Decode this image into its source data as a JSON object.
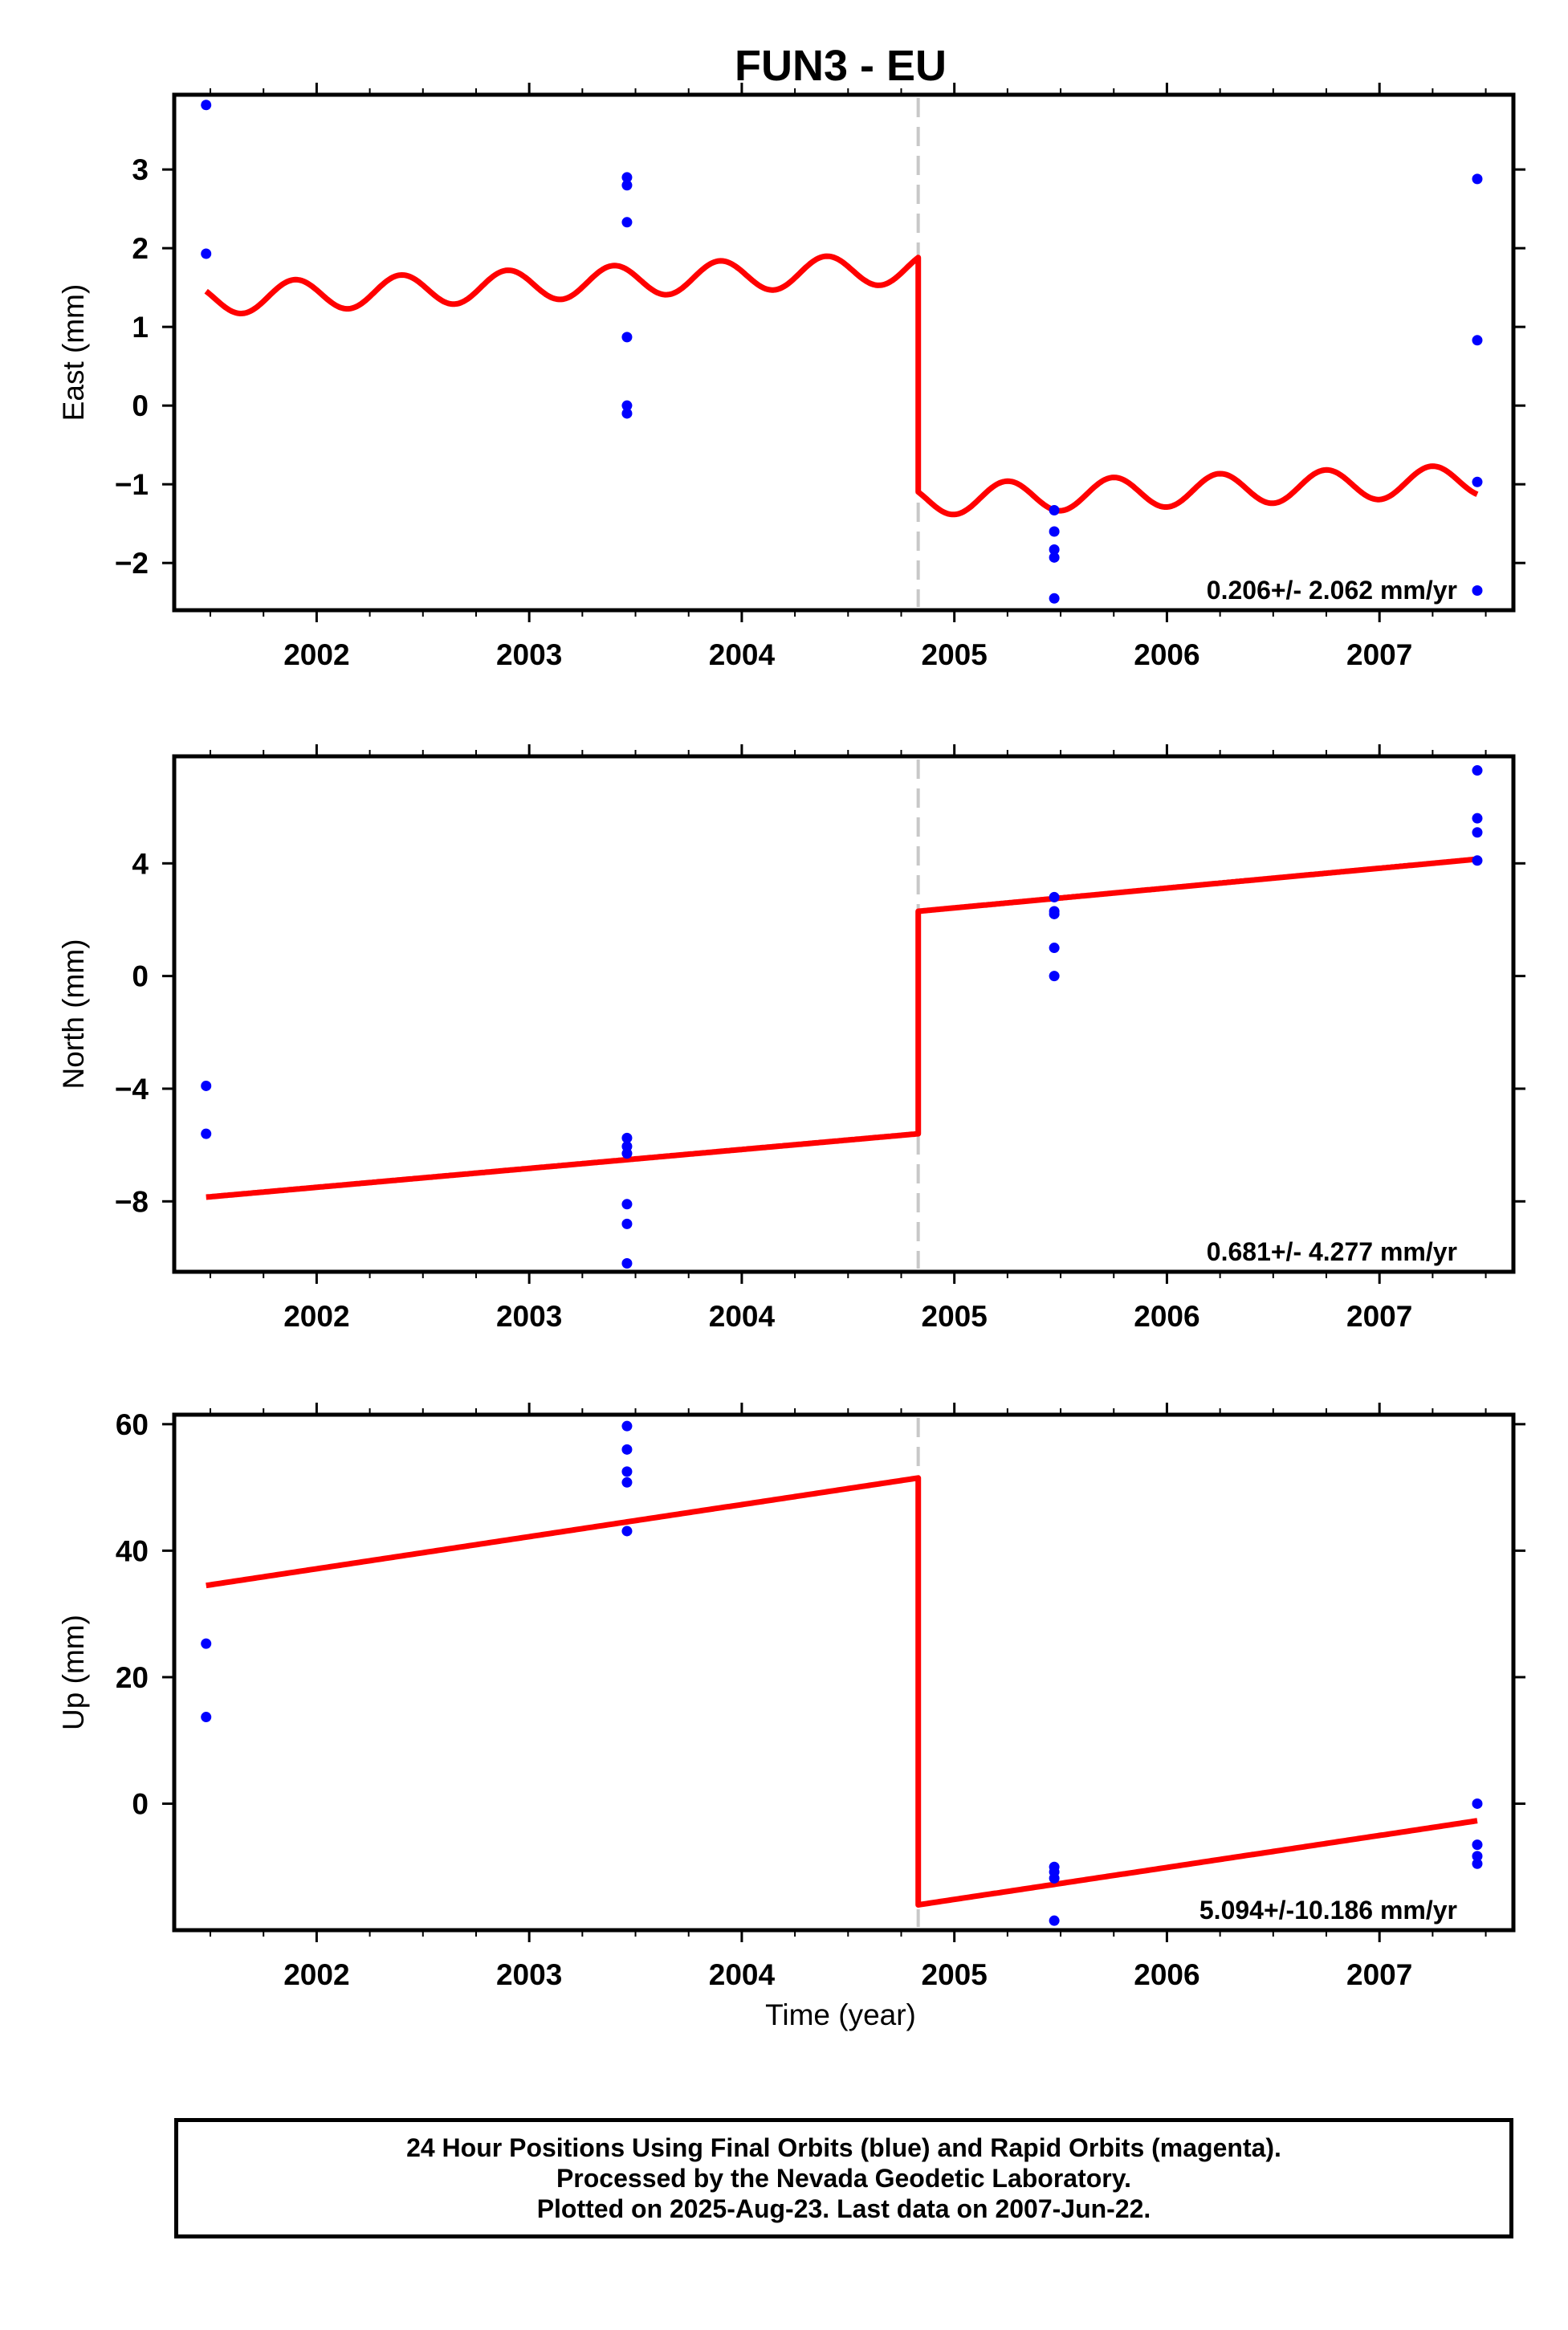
{
  "title": "FUN3 - EU",
  "xlabel": "Time (year)",
  "footer": {
    "line1": "24 Hour Positions Using Final Orbits (blue) and Rapid Orbits (magenta).",
    "line2": "Processed by the Nevada Geodetic Laboratory.",
    "line3": "Plotted on 2025-Aug-23. Last data on 2007-Jun-22."
  },
  "colors": {
    "data": "#0000ff",
    "model": "#ff0000",
    "offset_line": "#c8c8c8",
    "frame": "#000000"
  },
  "chart_data": [
    {
      "type": "scatter",
      "ylabel": "East (mm)",
      "rate_label": "0.206+/- 2.062 mm/yr",
      "xlim": [
        2001.33,
        2007.63
      ],
      "ylim": [
        -2.6,
        3.95
      ],
      "xticks": [
        2002,
        2003,
        2004,
        2005,
        2006,
        2007
      ],
      "yticks": [
        -2,
        -1,
        0,
        1,
        2,
        3
      ],
      "ytick_labels": [
        "−2",
        "−1",
        "0",
        "1",
        "2",
        "3"
      ],
      "offset_epoch": 2004.83,
      "points": [
        [
          2001.48,
          3.82
        ],
        [
          2001.48,
          1.93
        ],
        [
          2003.46,
          2.9
        ],
        [
          2003.46,
          2.8
        ],
        [
          2003.46,
          2.33
        ],
        [
          2003.46,
          0.87
        ],
        [
          2003.46,
          0.0
        ],
        [
          2003.46,
          -0.1
        ],
        [
          2005.47,
          -1.33
        ],
        [
          2005.47,
          -1.6
        ],
        [
          2005.47,
          -1.83
        ],
        [
          2005.47,
          -1.93
        ],
        [
          2005.47,
          -2.45
        ],
        [
          2007.46,
          2.88
        ],
        [
          2007.46,
          0.83
        ],
        [
          2007.46,
          -0.97
        ],
        [
          2007.46,
          -2.35
        ]
      ],
      "model": {
        "type": "seasonal",
        "t0": 2001.48,
        "t1": 2007.46,
        "pre": {
          "start": 1.35,
          "end": 1.75
        },
        "post": {
          "start": -1.2,
          "end": -0.95
        },
        "amplitude": 0.2,
        "period": 0.5,
        "phase": 2.6
      }
    },
    {
      "type": "scatter",
      "ylabel": "North (mm)",
      "rate_label": "0.681+/- 4.277 mm/yr",
      "xlim": [
        2001.33,
        2007.63
      ],
      "ylim": [
        -10.5,
        7.8
      ],
      "xticks": [
        2002,
        2003,
        2004,
        2005,
        2006,
        2007
      ],
      "yticks": [
        -8,
        -4,
        0,
        4
      ],
      "ytick_labels": [
        "−8",
        "−4",
        "0",
        "4"
      ],
      "offset_epoch": 2004.83,
      "points": [
        [
          2001.48,
          -3.9
        ],
        [
          2001.48,
          -5.6
        ],
        [
          2003.46,
          -5.75
        ],
        [
          2003.46,
          -6.05
        ],
        [
          2003.46,
          -6.3
        ],
        [
          2003.46,
          -8.1
        ],
        [
          2003.46,
          -8.8
        ],
        [
          2003.46,
          -10.2
        ],
        [
          2005.47,
          2.8
        ],
        [
          2005.47,
          2.3
        ],
        [
          2005.47,
          2.2
        ],
        [
          2005.47,
          1.0
        ],
        [
          2005.47,
          0.0
        ],
        [
          2007.46,
          7.3
        ],
        [
          2007.46,
          5.6
        ],
        [
          2007.46,
          5.1
        ],
        [
          2007.46,
          4.1
        ]
      ],
      "model": {
        "type": "linear",
        "t0": 2001.48,
        "t1": 2007.46,
        "pre": {
          "start": -7.85,
          "end": -5.6
        },
        "post": {
          "start": 2.3,
          "end": 4.15
        }
      }
    },
    {
      "type": "scatter",
      "ylabel": "Up (mm)",
      "rate_label": "5.094+/-10.186 mm/yr",
      "xlim": [
        2001.33,
        2007.63
      ],
      "ylim": [
        -20,
        61.5
      ],
      "xticks": [
        2002,
        2003,
        2004,
        2005,
        2006,
        2007
      ],
      "yticks": [
        0,
        20,
        40,
        60
      ],
      "ytick_labels": [
        "0",
        "20",
        "40",
        "60"
      ],
      "offset_epoch": 2004.83,
      "points": [
        [
          2001.48,
          25.3
        ],
        [
          2001.48,
          13.7
        ],
        [
          2003.46,
          59.7
        ],
        [
          2003.46,
          56.0
        ],
        [
          2003.46,
          52.5
        ],
        [
          2003.46,
          50.8
        ],
        [
          2003.46,
          43.1
        ],
        [
          2005.47,
          -10.0
        ],
        [
          2005.47,
          -10.8
        ],
        [
          2005.47,
          -11.8
        ],
        [
          2005.47,
          -18.5
        ],
        [
          2007.46,
          0.0
        ],
        [
          2007.46,
          -6.5
        ],
        [
          2007.46,
          -8.3
        ],
        [
          2007.46,
          -9.5
        ]
      ],
      "model": {
        "type": "linear",
        "t0": 2001.48,
        "t1": 2007.46,
        "pre": {
          "start": 34.5,
          "end": 51.5
        },
        "post": {
          "start": -16.0,
          "end": -2.7
        }
      }
    }
  ]
}
